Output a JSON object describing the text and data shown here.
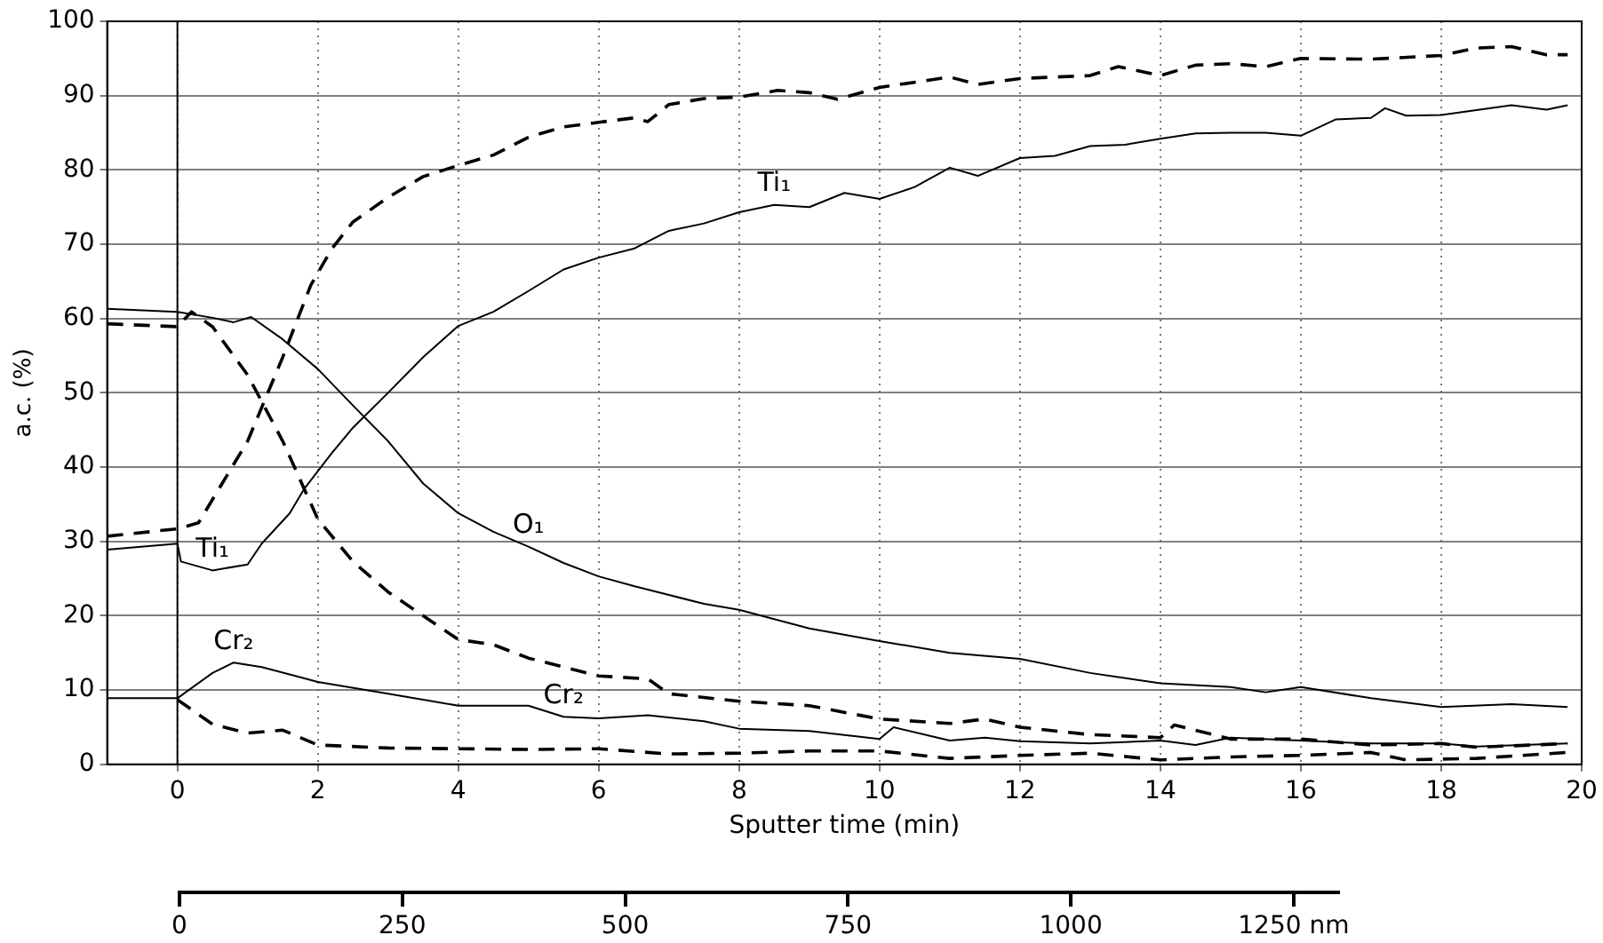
{
  "chart_data": {
    "type": "line",
    "xlabel": "Sputter time (min)",
    "ylabel": "a.c. (%)",
    "xlim": [
      -1,
      20
    ],
    "xticks": [
      0,
      2,
      4,
      6,
      8,
      10,
      12,
      14,
      16,
      18,
      20
    ],
    "ylim": [
      0,
      100
    ],
    "yticks": [
      0,
      10,
      20,
      30,
      40,
      50,
      60,
      70,
      80,
      90,
      100
    ],
    "x2lim": [
      0,
      1300
    ],
    "x2ticks": [
      0,
      250,
      500,
      750,
      1000,
      {
        "value": 1250,
        "label": "1250 nm"
      }
    ],
    "grid": true,
    "marker": "none",
    "legend": false,
    "ref_lines": [
      {
        "axis": "x",
        "value": 0,
        "color": "#000000",
        "line_style": "solid"
      }
    ],
    "annotations": [
      {
        "text": "Ti₁",
        "x": 8.5,
        "y": 75.3
      },
      {
        "text": "Ti₁",
        "x": 0.5,
        "y": 26.1
      },
      {
        "text": "O₁",
        "x": 5,
        "y": 29.3
      },
      {
        "text": "Cr₂",
        "x": 0.8,
        "y": 13.7
      },
      {
        "text": "Cr₂",
        "x": 5.5,
        "y": 6.4
      }
    ],
    "series": [
      {
        "color": "#000000",
        "line_style": "dashed",
        "x": [
          -1,
          0,
          0.3,
          1,
          1.5,
          1.9,
          2.2,
          2.5,
          3,
          3.5,
          4,
          4.5,
          5,
          5.5,
          6,
          6.5,
          6.7,
          7,
          7.5,
          8,
          8.55,
          9,
          9.4,
          10,
          11,
          11.4,
          12,
          13,
          13.4,
          14,
          14.5,
          15,
          15.5,
          16,
          17,
          18,
          18.5,
          19,
          19.5,
          19.8
        ],
        "values": [
          30.7,
          31.7,
          32.5,
          43.5,
          54.8,
          64.5,
          69.4,
          73,
          76.3,
          79.1,
          80.6,
          82,
          84.4,
          85.8,
          86.4,
          87,
          86.5,
          88.8,
          89.6,
          89.8,
          90.7,
          90.4,
          89.5,
          91.1,
          92.5,
          91.5,
          92.3,
          92.7,
          93.9,
          92.7,
          94.1,
          94.3,
          93.9,
          95,
          94.9,
          95.4,
          96.4,
          96.6,
          95.5,
          95.5
        ]
      },
      {
        "color": "#000000",
        "line_style": "solid",
        "x": [
          -1,
          0,
          0.05,
          0.5,
          1,
          1.2,
          1.6,
          1.8,
          2.2,
          2.5,
          3,
          3.5,
          4,
          4.5,
          5,
          5.5,
          6,
          6.5,
          7,
          7.5,
          8,
          8.5,
          9,
          9.5,
          10,
          10.5,
          11,
          11.4,
          12,
          12.5,
          13,
          13.5,
          14,
          14.5,
          15,
          15.5,
          16,
          16.5,
          17,
          17.2,
          17.5,
          18,
          19,
          19.5,
          19.8
        ],
        "values": [
          28.9,
          29.7,
          27.3,
          26.1,
          26.9,
          29.7,
          33.8,
          37,
          41.9,
          45.3,
          50,
          54.8,
          59,
          60.9,
          63.7,
          66.6,
          68.2,
          69.4,
          71.8,
          72.8,
          74.3,
          75.3,
          75,
          76.9,
          76.1,
          77.7,
          80.3,
          79.2,
          81.6,
          81.9,
          83.2,
          83.4,
          84.2,
          84.9,
          85,
          85,
          84.6,
          86.8,
          87,
          88.3,
          87.3,
          87.4,
          88.7,
          88.1,
          88.7
        ]
      },
      {
        "color": "#000000",
        "line_style": "solid",
        "x": [
          -1,
          0,
          0.5,
          0.8,
          1.05,
          1.5,
          2,
          2.5,
          3,
          3.5,
          4,
          4.5,
          5,
          5.5,
          6,
          6.5,
          7,
          7.5,
          8,
          9,
          10,
          11,
          12,
          13,
          14,
          15,
          15.5,
          16,
          17,
          18,
          19,
          19.8
        ],
        "values": [
          61.3,
          60.9,
          60.1,
          59.5,
          60.2,
          57.2,
          53.2,
          48.3,
          43.5,
          37.8,
          33.8,
          31.3,
          29.3,
          27.1,
          25.3,
          24,
          22.8,
          21.6,
          20.8,
          18.3,
          16.6,
          15,
          14.2,
          12.3,
          10.9,
          10.4,
          9.7,
          10.4,
          8.9,
          7.7,
          8.1,
          7.7
        ]
      },
      {
        "color": "#000000",
        "line_style": "dashed",
        "x": [
          -1,
          0,
          0.2,
          0.5,
          1,
          1.5,
          2,
          2.5,
          3,
          3.5,
          4,
          4.5,
          5,
          5.5,
          6,
          6.7,
          7,
          8,
          9,
          10,
          11,
          11.5,
          12,
          13,
          14,
          14.2,
          15,
          16,
          17,
          18,
          18.5,
          19.8
        ],
        "values": [
          59.3,
          58.9,
          60.9,
          58.9,
          52.4,
          43.5,
          33,
          27.3,
          23.2,
          20,
          16.8,
          16.1,
          14.3,
          13.1,
          11.9,
          11.5,
          9.5,
          8.5,
          7.9,
          6.1,
          5.5,
          6.1,
          5,
          4,
          3.6,
          5.3,
          3.4,
          3.4,
          2.6,
          2.8,
          2.3,
          2.8
        ]
      },
      {
        "color": "#000000",
        "line_style": "solid",
        "x": [
          -1,
          0,
          0.5,
          0.8,
          1.2,
          2,
          3,
          4,
          5,
          5.5,
          6,
          6.7,
          7.5,
          8,
          9,
          10,
          10.2,
          11,
          11.5,
          12,
          13,
          14,
          14.5,
          15,
          16,
          17,
          18,
          18.5,
          19.8
        ],
        "values": [
          8.9,
          8.9,
          12.3,
          13.7,
          13.1,
          11.1,
          9.5,
          7.9,
          7.9,
          6.4,
          6.2,
          6.6,
          5.8,
          4.8,
          4.5,
          3.4,
          5,
          3.2,
          3.6,
          3.1,
          2.8,
          3.2,
          2.6,
          3.6,
          3.2,
          2.8,
          2.8,
          2.4,
          2.8
        ]
      },
      {
        "color": "#000000",
        "line_style": "dashed",
        "x": [
          0,
          0.5,
          1,
          1.5,
          2,
          3,
          5,
          6,
          7,
          8,
          9,
          10,
          11,
          12,
          13,
          14,
          15,
          16,
          17,
          17.5,
          18.5,
          19.8
        ],
        "values": [
          8.7,
          5.4,
          4.2,
          4.6,
          2.6,
          2.2,
          2,
          2.1,
          1.4,
          1.5,
          1.8,
          1.8,
          0.8,
          1.2,
          1.5,
          0.6,
          1,
          1.2,
          1.6,
          0.6,
          0.8,
          1.6
        ]
      }
    ]
  }
}
